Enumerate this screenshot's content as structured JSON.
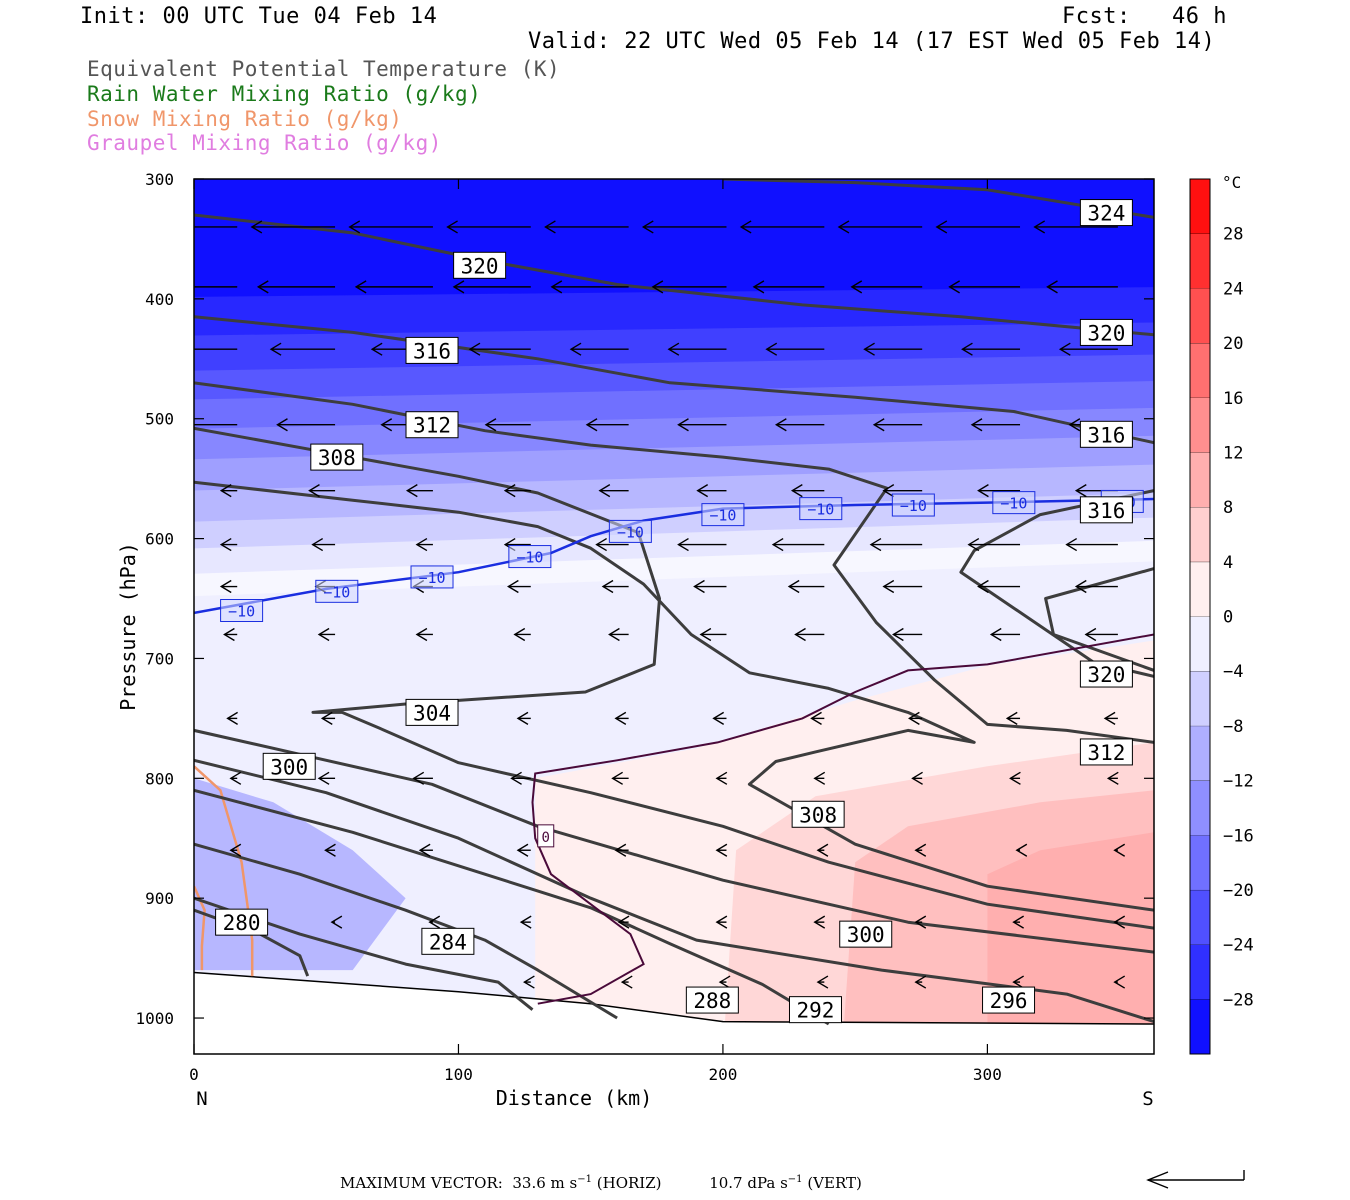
{
  "header": {
    "init": "Init: 00 UTC Tue 04 Feb 14",
    "fcst": "Fcst:   46 h",
    "valid": "Valid: 22 UTC Wed 05 Feb 14 (17 EST Wed 05 Feb 14)"
  },
  "fields": [
    {
      "label": "Equivalent Potential Temperature (K)",
      "color": "#555555"
    },
    {
      "label": "Rain Water Mixing Ratio (g/kg)",
      "color": "#1a7a1a"
    },
    {
      "label": "Snow Mixing Ratio (g/kg)",
      "color": "#f0966a"
    },
    {
      "label": "Graupel Mixing Ratio (g/kg)",
      "color": "#e07de0"
    }
  ],
  "footer": {
    "prefix": "MAXIMUM VECTOR:",
    "horiz_value": "33.6 m s",
    "horiz_suffix": " (HORIZ)",
    "vert_value": "10.7 dPa s",
    "vert_suffix": " (VERT)",
    "exponent": "−1"
  },
  "chart_data": {
    "type": "contour",
    "xlabel": "Distance (km)",
    "ylabel": "Pressure (hPa)",
    "x_ticks": [
      0,
      100,
      200,
      300
    ],
    "x_end_labels": {
      "left": "N",
      "right": "S"
    },
    "y_ticks": [
      300,
      400,
      500,
      600,
      700,
      800,
      900,
      1000
    ],
    "xlim": [
      0,
      363
    ],
    "ylim": [
      1030,
      300
    ],
    "colorbar": {
      "unit": "°C",
      "tick_values": [
        28,
        24,
        20,
        16,
        12,
        8,
        4,
        0,
        -4,
        -8,
        -12,
        -16,
        -20,
        -24,
        -28
      ],
      "tick_labels": [
        "28",
        "24",
        "20",
        "16",
        "12",
        "8",
        "4",
        "0",
        "−4",
        "−8",
        "−12",
        "−16",
        "−20",
        "−24",
        "−28"
      ],
      "range": [
        -32,
        32
      ]
    },
    "theta_e_contours": [
      {
        "value": "324",
        "points": [
          [
            200,
            300
          ],
          [
            250,
            303
          ],
          [
            300,
            309
          ],
          [
            363,
            332
          ]
        ]
      },
      {
        "value": "320",
        "points": [
          [
            0,
            330
          ],
          [
            60,
            345
          ],
          [
            110,
            368
          ],
          [
            160,
            388
          ],
          [
            230,
            405
          ],
          [
            290,
            415
          ],
          [
            363,
            430
          ]
        ]
      },
      {
        "value": "316",
        "points": [
          [
            0,
            415
          ],
          [
            60,
            428
          ],
          [
            130,
            450
          ],
          [
            180,
            470
          ],
          [
            250,
            482
          ],
          [
            310,
            494
          ],
          [
            363,
            520
          ]
        ]
      },
      {
        "value": "312",
        "points": [
          [
            0,
            470
          ],
          [
            60,
            488
          ],
          [
            110,
            510
          ],
          [
            150,
            522
          ],
          [
            200,
            532
          ],
          [
            240,
            542
          ],
          [
            262,
            558
          ],
          [
            242,
            622
          ],
          [
            258,
            670
          ],
          [
            280,
            718
          ],
          [
            300,
            755
          ],
          [
            330,
            760
          ],
          [
            363,
            770
          ]
        ]
      },
      {
        "value": "308",
        "points": [
          [
            0,
            508
          ],
          [
            50,
            528
          ],
          [
            100,
            548
          ],
          [
            130,
            562
          ],
          [
            168,
            595
          ],
          [
            176,
            650
          ],
          [
            174,
            705
          ],
          [
            148,
            728
          ],
          [
            100,
            735
          ],
          [
            80,
            738
          ],
          [
            60,
            742
          ],
          [
            45,
            745
          ],
          [
            56,
            745
          ],
          [
            70,
            758
          ],
          [
            100,
            787
          ],
          [
            150,
            812
          ],
          [
            200,
            840
          ],
          [
            240,
            870
          ],
          [
            300,
            905
          ],
          [
            363,
            925
          ]
        ]
      },
      {
        "value": "316",
        "points": [
          [
            363,
            560
          ],
          [
            320,
            580
          ],
          [
            295,
            610
          ],
          [
            290,
            628
          ],
          [
            340,
            703
          ],
          [
            363,
            715
          ]
        ]
      },
      {
        "value": "320",
        "points": [
          [
            363,
            625
          ],
          [
            322,
            650
          ],
          [
            325,
            680
          ],
          [
            363,
            710
          ]
        ]
      },
      {
        "value": "304",
        "points": [
          [
            0,
            553
          ],
          [
            60,
            568
          ],
          [
            100,
            578
          ],
          [
            130,
            590
          ],
          [
            150,
            608
          ],
          [
            170,
            638
          ],
          [
            188,
            680
          ],
          [
            210,
            712
          ],
          [
            240,
            725
          ],
          [
            270,
            745
          ],
          [
            295,
            770
          ],
          [
            270,
            760
          ],
          [
            235,
            778
          ],
          [
            220,
            786
          ],
          [
            210,
            805
          ],
          [
            250,
            855
          ],
          [
            300,
            890
          ],
          [
            363,
            910
          ]
        ]
      },
      {
        "value": "300",
        "points": [
          [
            0,
            760
          ],
          [
            40,
            780
          ],
          [
            90,
            805
          ],
          [
            130,
            840
          ],
          [
            200,
            885
          ],
          [
            270,
            920
          ],
          [
            363,
            945
          ]
        ]
      },
      {
        "value": "296",
        "points": [
          [
            0,
            785
          ],
          [
            50,
            812
          ],
          [
            100,
            850
          ],
          [
            150,
            900
          ],
          [
            190,
            935
          ],
          [
            260,
            960
          ],
          [
            330,
            980
          ],
          [
            363,
            1003
          ]
        ]
      },
      {
        "value": "292",
        "points": [
          [
            0,
            810
          ],
          [
            60,
            845
          ],
          [
            110,
            880
          ],
          [
            150,
            908
          ],
          [
            180,
            938
          ],
          [
            215,
            972
          ],
          [
            240,
            1005
          ]
        ]
      },
      {
        "value": "288",
        "points": [
          [
            0,
            855
          ],
          [
            40,
            880
          ],
          [
            80,
            910
          ],
          [
            110,
            935
          ],
          [
            130,
            960
          ],
          [
            160,
            1000
          ]
        ]
      },
      {
        "value": "284",
        "points": [
          [
            0,
            900
          ],
          [
            40,
            930
          ],
          [
            80,
            955
          ],
          [
            115,
            970
          ],
          [
            128,
            993
          ]
        ]
      },
      {
        "value": "280",
        "points": [
          [
            0,
            910
          ],
          [
            25,
            930
          ],
          [
            40,
            948
          ],
          [
            43,
            965
          ]
        ]
      }
    ],
    "theta_e_labels": [
      {
        "value": "324",
        "x": 345,
        "y": 328
      },
      {
        "value": "320",
        "x": 108,
        "y": 372
      },
      {
        "value": "320",
        "x": 345,
        "y": 428
      },
      {
        "value": "316",
        "x": 90,
        "y": 443
      },
      {
        "value": "316",
        "x": 345,
        "y": 513
      },
      {
        "value": "312",
        "x": 90,
        "y": 505
      },
      {
        "value": "308",
        "x": 54,
        "y": 532
      },
      {
        "value": "316",
        "x": 345,
        "y": 576
      },
      {
        "value": "320",
        "x": 345,
        "y": 713
      },
      {
        "value": "304",
        "x": 90,
        "y": 745
      },
      {
        "value": "312",
        "x": 345,
        "y": 778
      },
      {
        "value": "300",
        "x": 36,
        "y": 790
      },
      {
        "value": "308",
        "x": 236,
        "y": 830
      },
      {
        "value": "280",
        "x": 18,
        "y": 920
      },
      {
        "value": "300",
        "x": 254,
        "y": 930
      },
      {
        "value": "284",
        "x": 96,
        "y": 936
      },
      {
        "value": "288",
        "x": 196,
        "y": 985
      },
      {
        "value": "296",
        "x": 308,
        "y": 985
      },
      {
        "value": "292",
        "x": 235,
        "y": 993
      }
    ],
    "isotherm_minus10": {
      "value": "−10",
      "points": [
        [
          0,
          662
        ],
        [
          50,
          642
        ],
        [
          100,
          628
        ],
        [
          135,
          612
        ],
        [
          150,
          598
        ],
        [
          170,
          585
        ],
        [
          200,
          575
        ],
        [
          250,
          572
        ],
        [
          300,
          570
        ],
        [
          363,
          567
        ]
      ],
      "label_points": [
        [
          18,
          660
        ],
        [
          54,
          644
        ],
        [
          90,
          632
        ],
        [
          127,
          615
        ],
        [
          165,
          594
        ],
        [
          200,
          580
        ],
        [
          237,
          575
        ],
        [
          272,
          572
        ],
        [
          310,
          570
        ],
        [
          351,
          569
        ]
      ]
    },
    "isotherm_zero": {
      "value": "0",
      "points": [
        [
          130,
          988
        ],
        [
          150,
          980
        ],
        [
          170,
          955
        ],
        [
          165,
          930
        ],
        [
          150,
          905
        ],
        [
          135,
          880
        ],
        [
          129,
          850
        ],
        [
          128,
          820
        ],
        [
          129,
          796
        ],
        [
          160,
          785
        ],
        [
          198,
          770
        ],
        [
          230,
          750
        ],
        [
          250,
          728
        ],
        [
          270,
          710
        ],
        [
          300,
          705
        ],
        [
          363,
          680
        ]
      ],
      "label_point": [
        133,
        848
      ]
    },
    "snow_contours": [
      {
        "points": [
          [
            0,
            790
          ],
          [
            10,
            810
          ],
          [
            18,
            870
          ],
          [
            22,
            935
          ],
          [
            22,
            965
          ]
        ]
      },
      {
        "points": [
          [
            0,
            890
          ],
          [
            4,
            910
          ],
          [
            3,
            940
          ],
          [
            3,
            960
          ]
        ]
      }
    ],
    "terrain": [
      [
        0,
        962
      ],
      [
        50,
        970
      ],
      [
        100,
        978
      ],
      [
        150,
        988
      ],
      [
        200,
        1003
      ],
      [
        363,
        1005
      ]
    ],
    "temperature_field": [
      [
        28.3,
        -30
      ],
      [
        41.0,
        -30
      ],
      [
        54.4,
        -27
      ],
      [
        66.6,
        -24
      ],
      [
        76.6,
        -21
      ],
      [
        86.8,
        -18
      ],
      [
        97.4,
        -15
      ],
      [
        108.3,
        -12
      ],
      [
        119.1,
        -9
      ],
      [
        128.4,
        -6
      ],
      [
        137.2,
        -3
      ],
      [
        145.0,
        -1
      ]
    ],
    "wind_grid_x": [
      5,
      42,
      79,
      116,
      153,
      190,
      227,
      264,
      301,
      338
    ],
    "wind_vectors": [
      {
        "p": 340,
        "u": [
          -2.6,
          -2.6,
          -2.6,
          -2.6,
          -2.6,
          -2.6,
          -2.6,
          -2.6,
          -2.6,
          -2.6
        ]
      },
      {
        "p": 390,
        "u": [
          -2.4,
          -2.4,
          -2.4,
          -2.4,
          -2.4,
          -2.3,
          -2.2,
          -2.2,
          -2.2,
          -2.2
        ]
      },
      {
        "p": 442,
        "u": [
          -2.1,
          -2.0,
          -1.9,
          -1.9,
          -1.8,
          -1.8,
          -1.8,
          -1.8,
          -1.8,
          -1.8
        ]
      },
      {
        "p": 505,
        "u": [
          -1.9,
          -1.8,
          -1.6,
          -1.4,
          -1.3,
          -1.5,
          -1.5,
          -1.5,
          -1.5,
          -1.5
        ]
      },
      {
        "p": 560,
        "u": [
          -0.5,
          -0.8,
          -0.8,
          -0.8,
          -0.9,
          -0.9,
          -1.0,
          -1.2,
          -1.3,
          -1.3
        ]
      },
      {
        "p": 605,
        "u": [
          -0.5,
          -0.7,
          -0.5,
          -0.8,
          -1.0,
          -1.5,
          -1.6,
          -1.6,
          -1.6,
          -1.6
        ]
      },
      {
        "p": 640,
        "u": [
          -0.5,
          -0.6,
          -0.6,
          -0.7,
          -0.8,
          -1.0,
          -1.1,
          -1.2,
          -1.3,
          -1.3
        ]
      },
      {
        "p": 680,
        "u": [
          -0.4,
          -0.5,
          -0.5,
          -0.5,
          -0.6,
          -0.8,
          -0.9,
          -0.9,
          -0.9,
          -1.0
        ]
      },
      {
        "p": 750,
        "u": [
          -0.3,
          -0.4,
          -0.4,
          -0.4,
          -0.4,
          -0.4,
          -0.4,
          -0.4,
          -0.4,
          -0.4
        ]
      },
      {
        "p": 800,
        "u": [
          -0.2,
          -0.5,
          -0.6,
          -0.6,
          -0.5,
          -0.3,
          -0.3,
          -0.3,
          -0.3,
          -0.3
        ]
      },
      {
        "p": 860,
        "u": [
          -0.2,
          -0.3,
          -0.4,
          -0.4,
          -0.4,
          -0.3,
          -0.2,
          -0.2,
          -0.1,
          -0.1
        ]
      },
      {
        "p": 920,
        "u": [
          0.0,
          -0.1,
          -0.1,
          -0.3,
          -0.3,
          -0.3,
          -0.3,
          -0.2,
          -0.2,
          -0.1
        ]
      },
      {
        "p": 970,
        "u": [
          0.0,
          0.0,
          0.0,
          -0.2,
          -0.2,
          -0.2,
          -0.2,
          -0.2,
          -0.2,
          -0.1
        ]
      }
    ],
    "reference_vector": {
      "u": -33.6,
      "w": 10.7
    }
  }
}
